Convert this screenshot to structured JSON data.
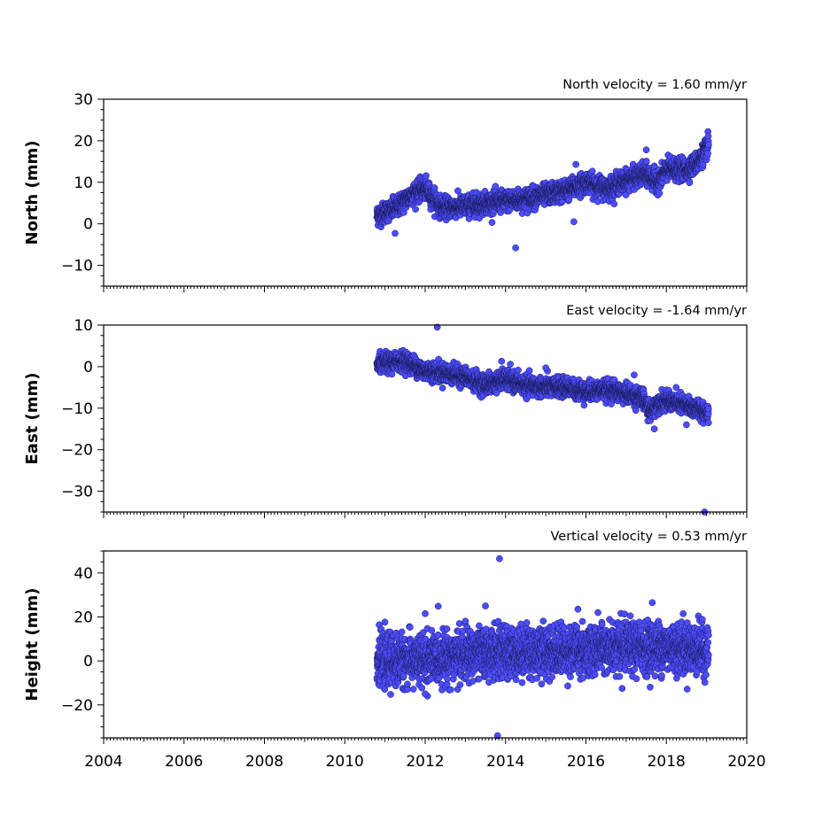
{
  "chart_data": [
    {
      "type": "scatter",
      "id": "north",
      "title": "North velocity = 1.60 mm/yr",
      "ylabel": "North (mm)",
      "xlim": [
        2004,
        2020
      ],
      "ylim": [
        -15,
        30
      ],
      "yticks": [
        -10,
        0,
        10,
        20,
        30
      ],
      "show_x_tick_labels": false,
      "color": "#4c4cff",
      "x_range": [
        2010.8,
        2019.05
      ],
      "trend": [
        [
          2010.8,
          2.0
        ],
        [
          2011.3,
          4.0
        ],
        [
          2011.7,
          7.5
        ],
        [
          2012.0,
          8.5
        ],
        [
          2012.4,
          4.0
        ],
        [
          2012.8,
          4.0
        ],
        [
          2013.5,
          5.0
        ],
        [
          2014.0,
          5.5
        ],
        [
          2014.5,
          6.0
        ],
        [
          2015.0,
          7.0
        ],
        [
          2015.5,
          8.0
        ],
        [
          2016.0,
          10.0
        ],
        [
          2016.5,
          8.5
        ],
        [
          2017.0,
          10.5
        ],
        [
          2017.5,
          12.0
        ],
        [
          2017.8,
          10.0
        ],
        [
          2018.0,
          13.0
        ],
        [
          2018.5,
          13.0
        ],
        [
          2018.8,
          15.0
        ],
        [
          2019.05,
          19.0
        ]
      ],
      "scatter_sd": 1.2,
      "outliers": [
        [
          2014.25,
          -5.8
        ],
        [
          2015.7,
          0.5
        ],
        [
          2011.25,
          -2.3
        ],
        [
          2015.75,
          14.3
        ],
        [
          2017.5,
          17.8
        ]
      ]
    },
    {
      "type": "scatter",
      "id": "east",
      "title": "East velocity = -1.64 mm/yr",
      "ylabel": "East (mm)",
      "xlim": [
        2004,
        2020
      ],
      "ylim": [
        -35,
        10
      ],
      "yticks": [
        -30,
        -20,
        -10,
        0,
        10
      ],
      "show_x_tick_labels": false,
      "color": "#4c4cff",
      "x_range": [
        2010.8,
        2019.05
      ],
      "trend": [
        [
          2010.8,
          0.5
        ],
        [
          2011.5,
          1.5
        ],
        [
          2012.0,
          -1.0
        ],
        [
          2012.5,
          -1.5
        ],
        [
          2013.0,
          -2.5
        ],
        [
          2013.5,
          -4.5
        ],
        [
          2014.0,
          -3.0
        ],
        [
          2014.5,
          -4.5
        ],
        [
          2015.0,
          -5.0
        ],
        [
          2015.5,
          -5.0
        ],
        [
          2016.0,
          -6.0
        ],
        [
          2016.5,
          -5.5
        ],
        [
          2017.0,
          -6.5
        ],
        [
          2017.4,
          -7.5
        ],
        [
          2017.6,
          -11.0
        ],
        [
          2017.8,
          -8.5
        ],
        [
          2018.2,
          -8.5
        ],
        [
          2018.5,
          -9.5
        ],
        [
          2019.05,
          -11.0
        ]
      ],
      "scatter_sd": 1.1,
      "outliers": [
        [
          2012.3,
          9.5
        ],
        [
          2018.95,
          -35.0
        ],
        [
          2013.9,
          1.3
        ],
        [
          2015.0,
          -0.3
        ],
        [
          2017.2,
          -2.0
        ],
        [
          2017.7,
          -15.0
        ],
        [
          2018.5,
          -14.0
        ]
      ]
    },
    {
      "type": "scatter",
      "id": "height",
      "title": "Vertical velocity = 0.53 mm/yr",
      "ylabel": "Height (mm)",
      "xlim": [
        2004,
        2020
      ],
      "ylim": [
        -35,
        50
      ],
      "yticks": [
        -20,
        0,
        20,
        40
      ],
      "xticks": [
        2004,
        2006,
        2008,
        2010,
        2012,
        2014,
        2016,
        2018,
        2020
      ],
      "show_x_tick_labels": true,
      "color": "#4c4cff",
      "x_range": [
        2010.8,
        2019.05
      ],
      "trend": [
        [
          2010.8,
          0.0
        ],
        [
          2012.0,
          0.5
        ],
        [
          2013.0,
          3.0
        ],
        [
          2014.0,
          4.0
        ],
        [
          2015.0,
          4.5
        ],
        [
          2016.0,
          5.0
        ],
        [
          2017.0,
          6.0
        ],
        [
          2018.0,
          6.5
        ],
        [
          2019.05,
          5.0
        ]
      ],
      "scatter_sd": 5.5,
      "outliers": [
        [
          2013.85,
          46.5
        ],
        [
          2013.8,
          -34.0
        ],
        [
          2012.0,
          21.5
        ],
        [
          2013.5,
          25.0
        ],
        [
          2015.8,
          23.5
        ],
        [
          2017.65,
          26.5
        ],
        [
          2012.0,
          -15.0
        ],
        [
          2016.9,
          -12.5
        ]
      ]
    }
  ]
}
